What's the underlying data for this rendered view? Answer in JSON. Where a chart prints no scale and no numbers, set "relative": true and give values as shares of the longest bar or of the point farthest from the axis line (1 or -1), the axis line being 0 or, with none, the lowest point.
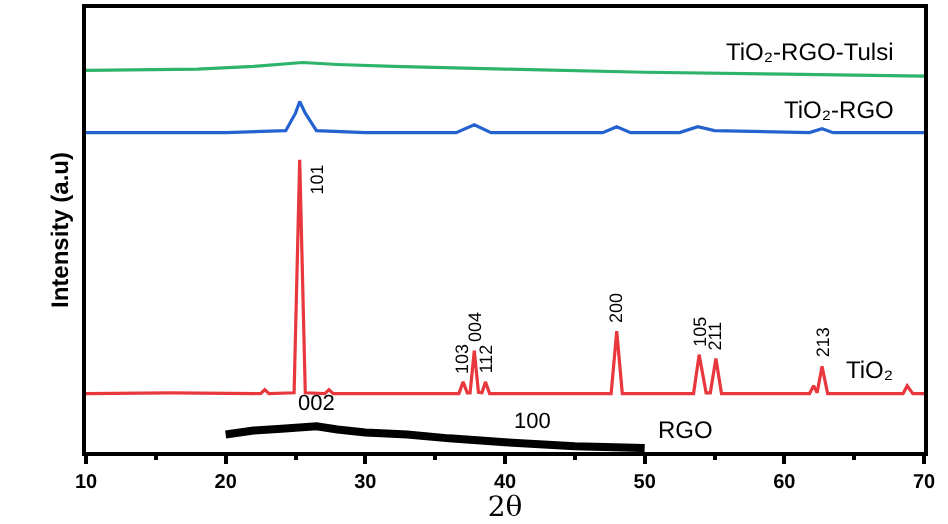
{
  "chart_data": {
    "type": "line",
    "relative": true,
    "xlabel": "2θ",
    "ylabel": "Intensity (a.u)",
    "xlim": [
      10,
      70
    ],
    "xticks": [
      10,
      20,
      30,
      40,
      50,
      60,
      70
    ],
    "grid": false,
    "legend": false,
    "marker": "none",
    "line_style": "solid",
    "tick_labels": "x",
    "series": [
      {
        "name": "TiO₂-RGO-Tulsi",
        "color": "#2db36a",
        "x": [
          10,
          18,
          22,
          25.5,
          28,
          32,
          40,
          50,
          60,
          70
        ],
        "values": [
          0.98,
          0.983,
          0.99,
          1.0,
          0.995,
          0.99,
          0.983,
          0.975,
          0.97,
          0.965
        ]
      },
      {
        "name": "TiO₂-RGO",
        "color": "#2463cf",
        "x": [
          10,
          20,
          24.3,
          25,
          25.3,
          25.7,
          26.5,
          30,
          36.5,
          37.8,
          39,
          47,
          48,
          49,
          52.5,
          53.8,
          55,
          61.8,
          62.7,
          63.5,
          70
        ],
        "values": [
          0.82,
          0.82,
          0.825,
          0.87,
          0.9,
          0.87,
          0.825,
          0.82,
          0.82,
          0.84,
          0.82,
          0.82,
          0.835,
          0.82,
          0.82,
          0.835,
          0.825,
          0.82,
          0.83,
          0.82,
          0.82
        ]
      },
      {
        "name": "TiO₂",
        "color": "#e8383d",
        "x": [
          10,
          16,
          22.5,
          22.8,
          23.1,
          24.9,
          25.3,
          25.7,
          27.1,
          27.4,
          27.7,
          36.7,
          37,
          37.3,
          37.5,
          37.8,
          38.1,
          38.35,
          38.6,
          38.9,
          47.6,
          48,
          48.4,
          53.5,
          53.9,
          54.4,
          54.7,
          55.1,
          55.5,
          61.8,
          62.1,
          62.35,
          62.7,
          63.1,
          68.5,
          68.8,
          69.2,
          70
        ],
        "values": [
          0.15,
          0.152,
          0.15,
          0.16,
          0.15,
          0.152,
          0.75,
          0.152,
          0.15,
          0.16,
          0.15,
          0.15,
          0.18,
          0.152,
          0.152,
          0.26,
          0.153,
          0.152,
          0.18,
          0.15,
          0.15,
          0.31,
          0.15,
          0.15,
          0.25,
          0.152,
          0.152,
          0.24,
          0.15,
          0.15,
          0.17,
          0.152,
          0.22,
          0.15,
          0.15,
          0.17,
          0.15,
          0.15
        ]
      },
      {
        "name": "RGO",
        "color": "#000000",
        "x": [
          20,
          22,
          24,
          26.5,
          28,
          30,
          33,
          36,
          40,
          45,
          50
        ],
        "values": [
          0.045,
          0.055,
          0.06,
          0.066,
          0.058,
          0.05,
          0.045,
          0.035,
          0.025,
          0.015,
          0.01
        ]
      }
    ],
    "annotations": [
      {
        "text": "101",
        "x": 25.3,
        "y": 0.75
      },
      {
        "text": "103",
        "x": 37,
        "y": 0.18
      },
      {
        "text": "004",
        "x": 37.8,
        "y": 0.26
      },
      {
        "text": "112",
        "x": 38.6,
        "y": 0.18
      },
      {
        "text": "200",
        "x": 48,
        "y": 0.31
      },
      {
        "text": "105",
        "x": 53.9,
        "y": 0.25
      },
      {
        "text": "211",
        "x": 55.1,
        "y": 0.24
      },
      {
        "text": "213",
        "x": 62.7,
        "y": 0.22
      },
      {
        "text": "002",
        "x": 26.5,
        "y": 0.066
      },
      {
        "text": "100",
        "x": 42,
        "y": 0.02
      }
    ]
  }
}
